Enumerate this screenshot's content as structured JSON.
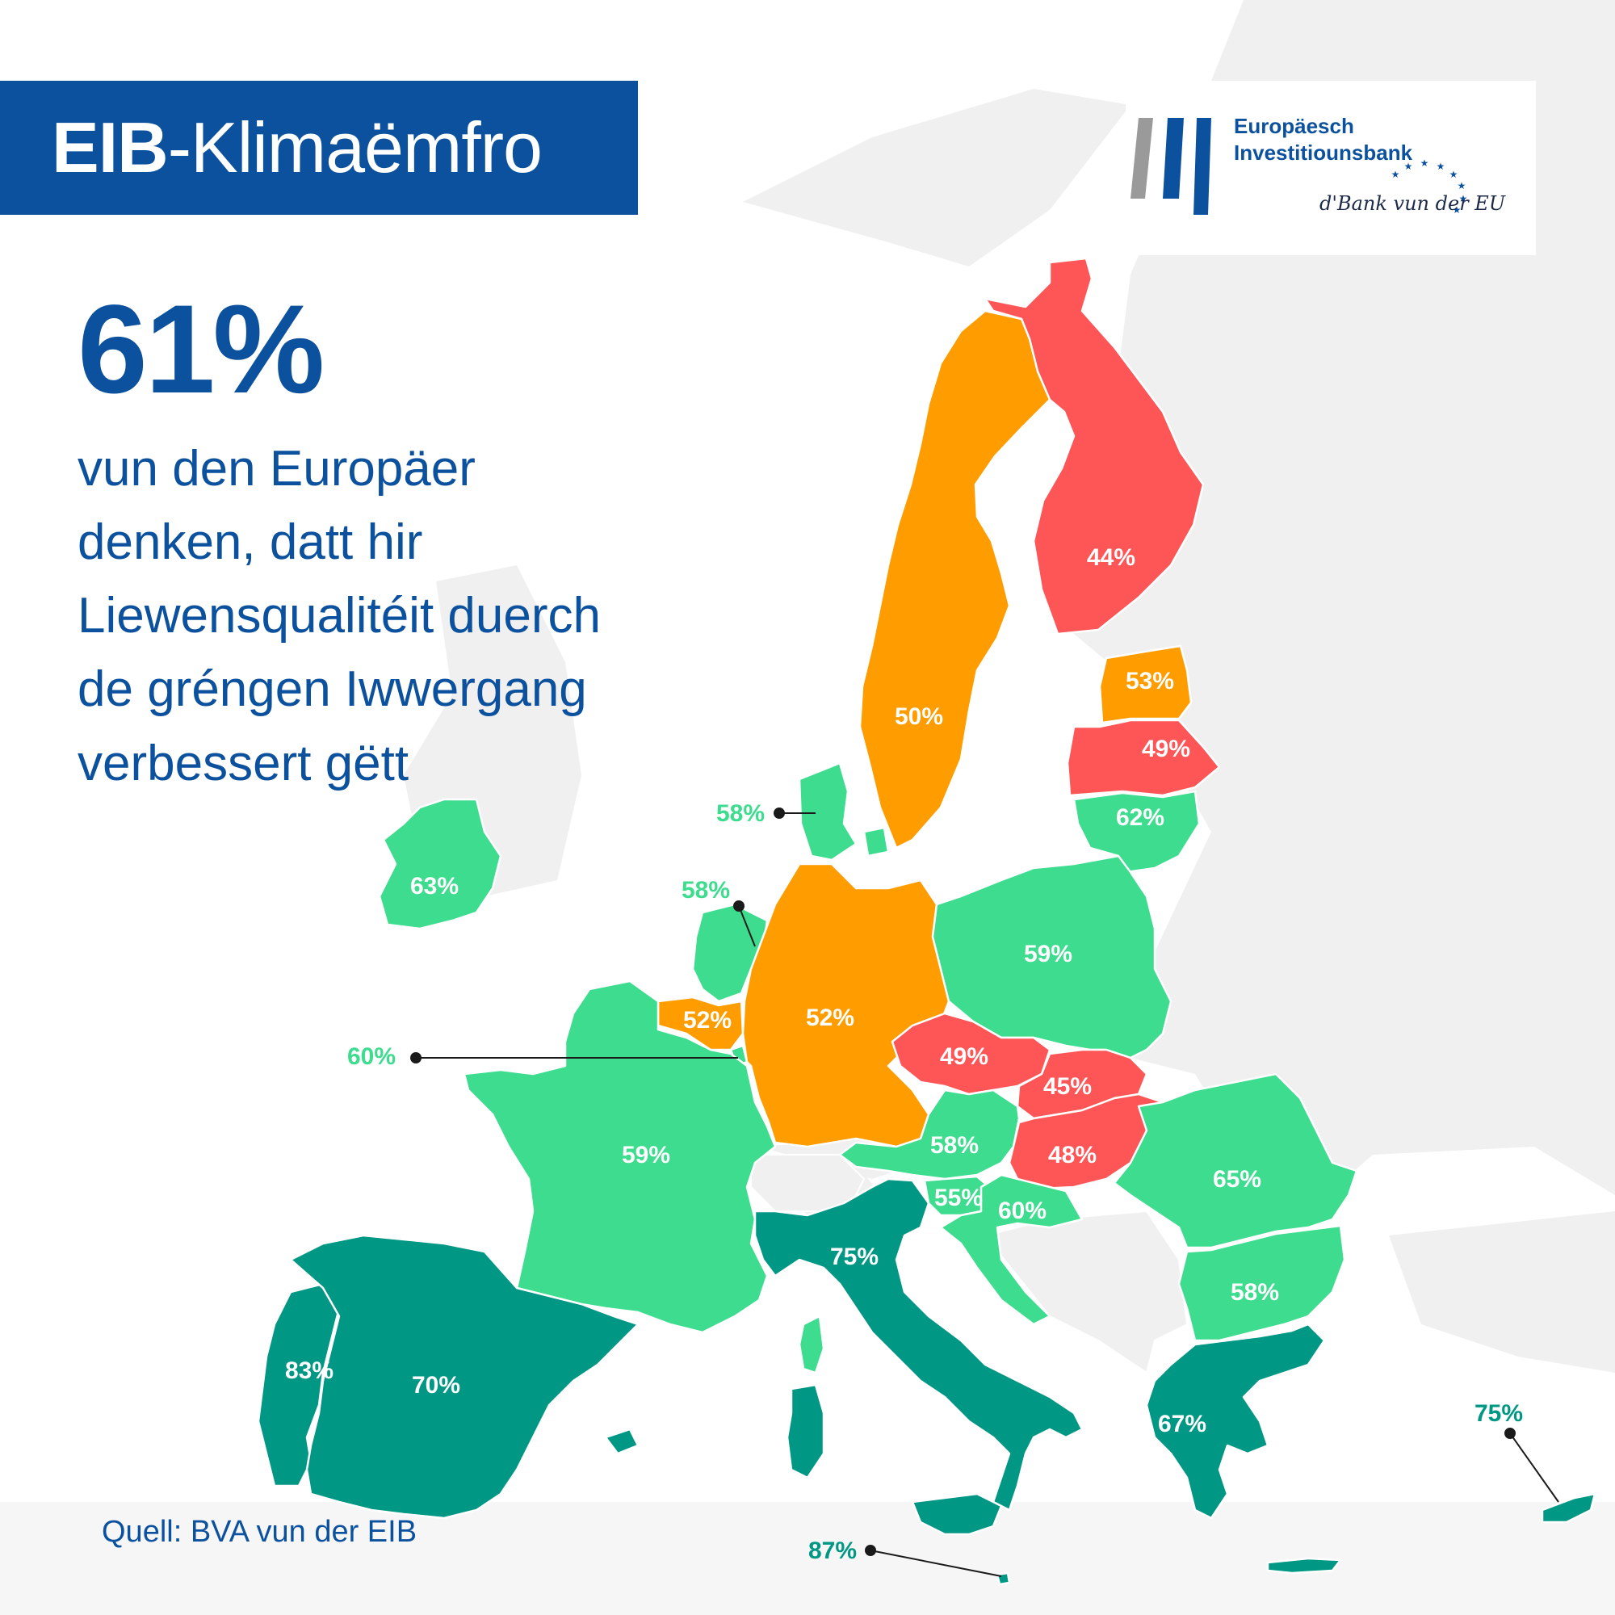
{
  "title": {
    "bold": "EIB",
    "rest": "-Klimaëmfro"
  },
  "headline": {
    "value": "61%",
    "lines": [
      "vun den Europäer",
      "denken, datt hir",
      "Liewensqualitéit duerch",
      "de gréngen Iwwergang",
      "verbessert gëtt"
    ]
  },
  "logo": {
    "line1": "Europäesch",
    "line2": "Investitiounsbank",
    "tagline": "d'Bank vun der EU"
  },
  "source": "Quell: BVA vun der EIB",
  "colors": {
    "brand_blue": "#0c519e",
    "low": "#fe5557",
    "mid": "#fe9c00",
    "high": "#3ddc8e",
    "very_high": "#009784",
    "land_background": "#f0f0f1"
  },
  "regions": {
    "finland": {
      "label": "44%",
      "value": 44
    },
    "sweden": {
      "label": "50%",
      "value": 50
    },
    "estonia": {
      "label": "53%",
      "value": 53
    },
    "latvia": {
      "label": "49%",
      "value": 49
    },
    "lithuania": {
      "label": "62%",
      "value": 62
    },
    "denmark": {
      "label": "58%",
      "value": 58
    },
    "ireland": {
      "label": "63%",
      "value": 63
    },
    "netherlands": {
      "label": "58%",
      "value": 58
    },
    "belgium": {
      "label": "52%",
      "value": 52
    },
    "luxembourg": {
      "label": "60%",
      "value": 60
    },
    "germany": {
      "label": "52%",
      "value": 52
    },
    "poland": {
      "label": "59%",
      "value": 59
    },
    "czechia": {
      "label": "49%",
      "value": 49
    },
    "slovakia": {
      "label": "45%",
      "value": 45
    },
    "france": {
      "label": "59%",
      "value": 59
    },
    "austria": {
      "label": "58%",
      "value": 58
    },
    "hungary": {
      "label": "48%",
      "value": 48
    },
    "romania": {
      "label": "65%",
      "value": 65
    },
    "slovenia": {
      "label": "55%",
      "value": 55
    },
    "croatia": {
      "label": "60%",
      "value": 60
    },
    "italy": {
      "label": "75%",
      "value": 75
    },
    "bulgaria": {
      "label": "58%",
      "value": 58
    },
    "portugal": {
      "label": "83%",
      "value": 83
    },
    "spain": {
      "label": "70%",
      "value": 70
    },
    "greece": {
      "label": "67%",
      "value": 67
    },
    "cyprus": {
      "label": "75%",
      "value": 75
    },
    "malta": {
      "label": "87%",
      "value": 87
    }
  }
}
